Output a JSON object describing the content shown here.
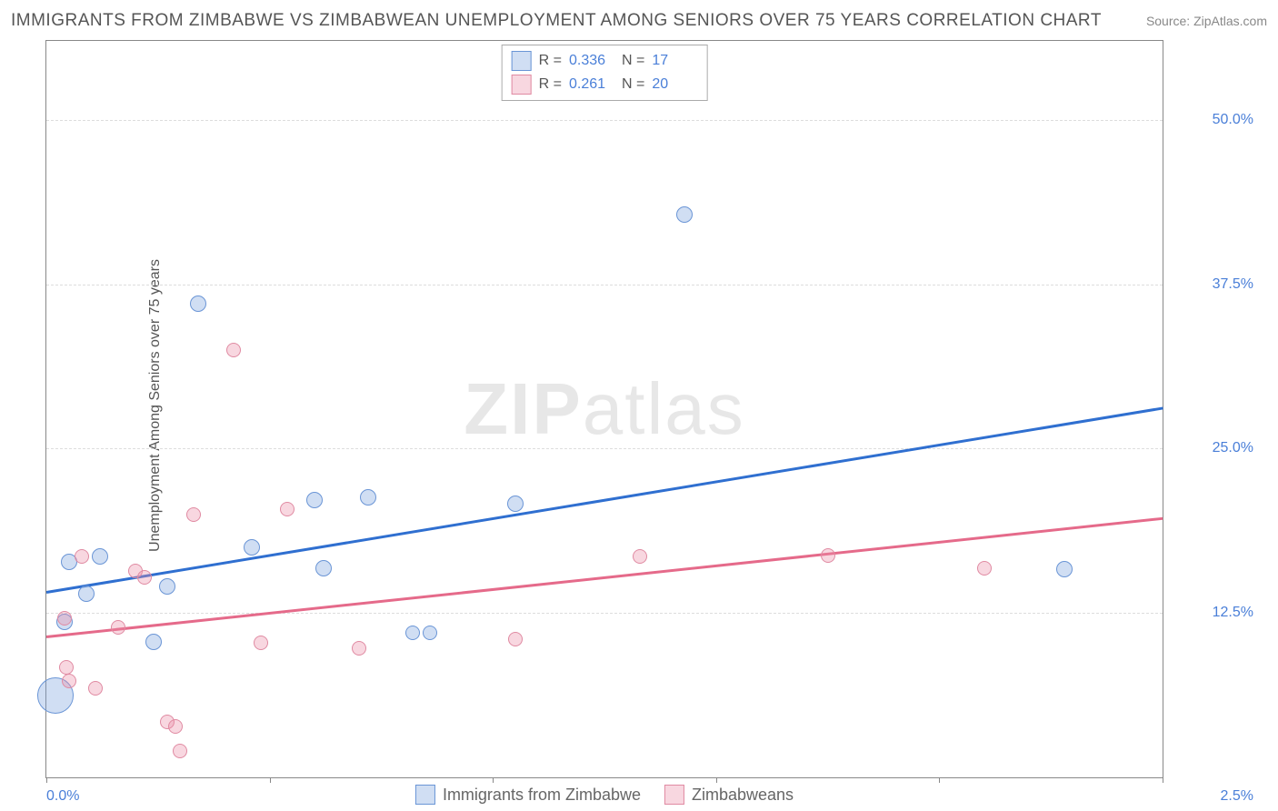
{
  "title": "IMMIGRANTS FROM ZIMBABWE VS ZIMBABWEAN UNEMPLOYMENT AMONG SENIORS OVER 75 YEARS CORRELATION CHART",
  "source": "Source: ZipAtlas.com",
  "watermark_bold": "ZIP",
  "watermark_light": "atlas",
  "chart": {
    "type": "scatter",
    "ylabel": "Unemployment Among Seniors over 75 years",
    "xlim": [
      0.0,
      2.5
    ],
    "ylim": [
      0.0,
      56.0
    ],
    "xticks": [
      0.0,
      0.5,
      1.0,
      1.5,
      2.0,
      2.5
    ],
    "yticks_labeled": [
      {
        "v": 12.5,
        "label": "12.5%"
      },
      {
        "v": 25.0,
        "label": "25.0%"
      },
      {
        "v": 37.5,
        "label": "37.5%"
      },
      {
        "v": 50.0,
        "label": "50.0%"
      }
    ],
    "xaxis_left_label": "0.0%",
    "xaxis_right_label": "2.5%",
    "grid_color": "#dddddd",
    "border_color": "#888888",
    "background_color": "#ffffff",
    "series": [
      {
        "name": "Immigrants from Zimbabwe",
        "fill": "rgba(120,160,220,0.35)",
        "stroke": "#6a95d6",
        "line_color": "#2f6fd0",
        "R": "0.336",
        "N": "17",
        "trend": {
          "x1": 0.0,
          "y1": 14.2,
          "x2": 2.5,
          "y2": 28.2
        },
        "points": [
          {
            "x": 0.02,
            "y": 6.2,
            "r": 20
          },
          {
            "x": 0.04,
            "y": 11.8,
            "r": 9
          },
          {
            "x": 0.05,
            "y": 16.4,
            "r": 9
          },
          {
            "x": 0.09,
            "y": 14.0,
            "r": 9
          },
          {
            "x": 0.12,
            "y": 16.8,
            "r": 9
          },
          {
            "x": 0.24,
            "y": 10.3,
            "r": 9
          },
          {
            "x": 0.27,
            "y": 14.5,
            "r": 9
          },
          {
            "x": 0.34,
            "y": 36.0,
            "r": 9
          },
          {
            "x": 0.46,
            "y": 17.5,
            "r": 9
          },
          {
            "x": 0.6,
            "y": 21.1,
            "r": 9
          },
          {
            "x": 0.62,
            "y": 15.9,
            "r": 9
          },
          {
            "x": 0.72,
            "y": 21.3,
            "r": 9
          },
          {
            "x": 0.82,
            "y": 11.0,
            "r": 8
          },
          {
            "x": 0.86,
            "y": 11.0,
            "r": 8
          },
          {
            "x": 1.05,
            "y": 20.8,
            "r": 9
          },
          {
            "x": 1.43,
            "y": 42.8,
            "r": 9
          },
          {
            "x": 2.28,
            "y": 15.8,
            "r": 9
          }
        ]
      },
      {
        "name": "Zimbabweans",
        "fill": "rgba(235,140,165,0.35)",
        "stroke": "#e08aa2",
        "line_color": "#e56a8a",
        "R": "0.261",
        "N": "20",
        "trend": {
          "x1": 0.0,
          "y1": 10.8,
          "x2": 2.5,
          "y2": 19.8
        },
        "points": [
          {
            "x": 0.045,
            "y": 8.4,
            "r": 8
          },
          {
            "x": 0.04,
            "y": 12.1,
            "r": 8
          },
          {
            "x": 0.05,
            "y": 7.3,
            "r": 8
          },
          {
            "x": 0.08,
            "y": 16.8,
            "r": 8
          },
          {
            "x": 0.11,
            "y": 6.8,
            "r": 8
          },
          {
            "x": 0.16,
            "y": 11.4,
            "r": 8
          },
          {
            "x": 0.2,
            "y": 15.7,
            "r": 8
          },
          {
            "x": 0.22,
            "y": 15.2,
            "r": 8
          },
          {
            "x": 0.27,
            "y": 4.2,
            "r": 8
          },
          {
            "x": 0.29,
            "y": 3.9,
            "r": 8
          },
          {
            "x": 0.3,
            "y": 2.0,
            "r": 8
          },
          {
            "x": 0.33,
            "y": 20.0,
            "r": 8
          },
          {
            "x": 0.42,
            "y": 32.5,
            "r": 8
          },
          {
            "x": 0.48,
            "y": 10.2,
            "r": 8
          },
          {
            "x": 0.54,
            "y": 20.4,
            "r": 8
          },
          {
            "x": 0.7,
            "y": 9.8,
            "r": 8
          },
          {
            "x": 1.05,
            "y": 10.5,
            "r": 8
          },
          {
            "x": 1.33,
            "y": 16.8,
            "r": 8
          },
          {
            "x": 1.75,
            "y": 16.9,
            "r": 8
          },
          {
            "x": 2.1,
            "y": 15.9,
            "r": 8
          }
        ]
      }
    ],
    "legend_bottom": [
      {
        "label": "Immigrants from Zimbabwe",
        "series_idx": 0
      },
      {
        "label": "Zimbabweans",
        "series_idx": 1
      }
    ]
  }
}
